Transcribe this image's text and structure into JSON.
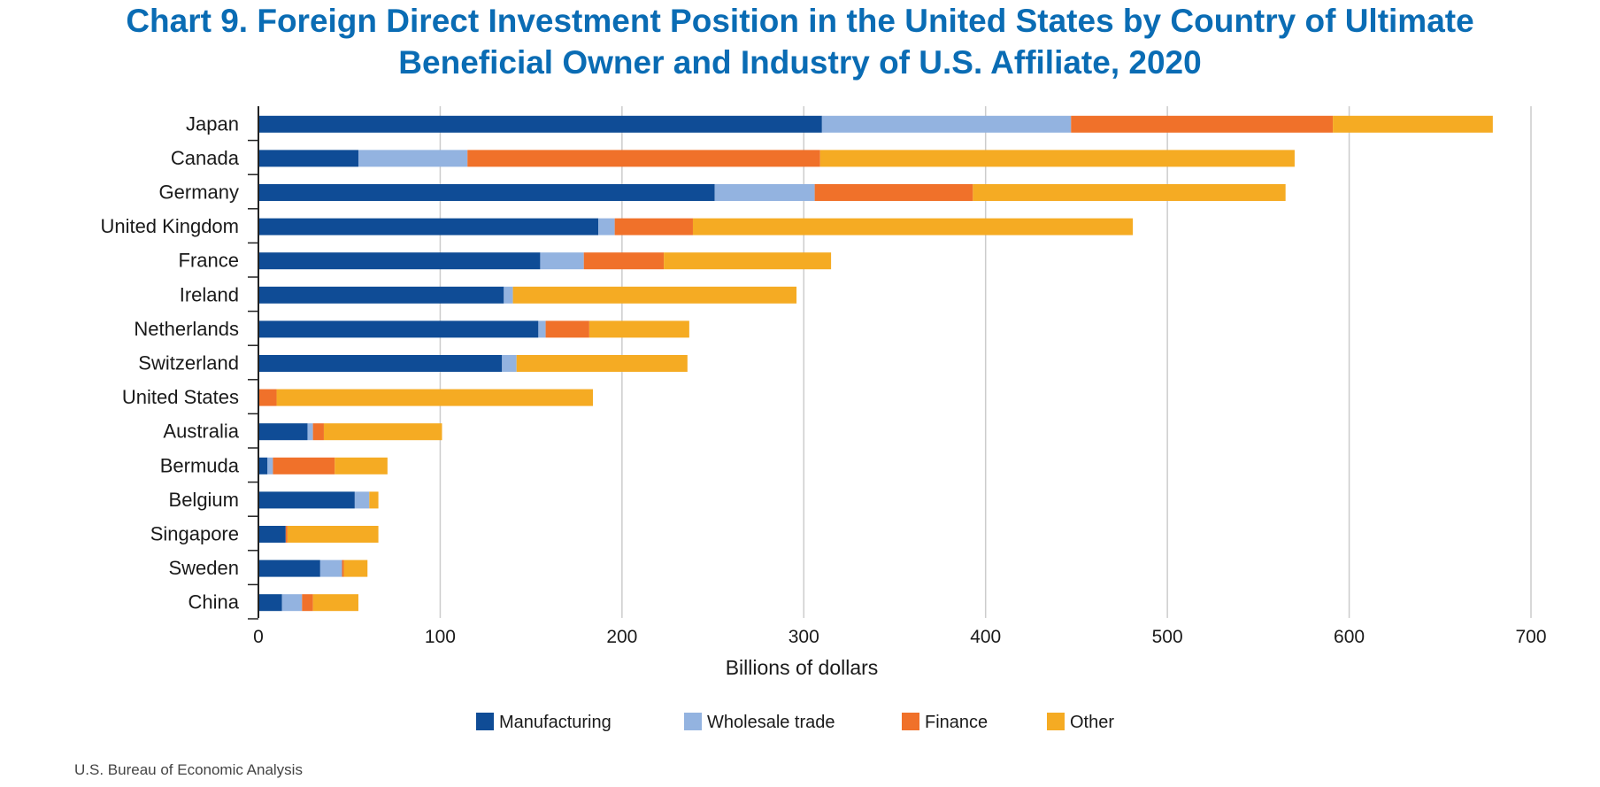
{
  "chart_data": {
    "type": "bar",
    "orientation": "horizontal",
    "stacked": true,
    "title_lines": [
      "Chart 9. Foreign Direct Investment Position in the United States by Country of Ultimate",
      "Beneficial Owner and Industry of U.S. Affiliate, 2020"
    ],
    "xlabel": "Billions of dollars",
    "ylabel": "",
    "xlim": [
      0,
      700
    ],
    "xticks": [
      0,
      100,
      200,
      300,
      400,
      500,
      600,
      700
    ],
    "grid": "vertical",
    "legend_position": "bottom",
    "categories": [
      "Japan",
      "Canada",
      "Germany",
      "United Kingdom",
      "France",
      "Ireland",
      "Netherlands",
      "Switzerland",
      "United States",
      "Australia",
      "Bermuda",
      "Belgium",
      "Singapore",
      "Sweden",
      "China"
    ],
    "series": [
      {
        "name": "Manufacturing",
        "color": "#0f4c96",
        "values": [
          310,
          55,
          251,
          187,
          155,
          135,
          154,
          134,
          0,
          27,
          5,
          53,
          15,
          34,
          13
        ]
      },
      {
        "name": "Wholesale trade",
        "color": "#93b3e0",
        "values": [
          137,
          60,
          55,
          9,
          24,
          5,
          4,
          8,
          0,
          3,
          3,
          8,
          0,
          12,
          11
        ]
      },
      {
        "name": "Finance",
        "color": "#f0712a",
        "values": [
          144,
          194,
          87,
          43,
          44,
          0,
          24,
          0,
          10,
          6,
          34,
          0,
          1,
          1,
          6
        ]
      },
      {
        "name": "Other",
        "color": "#f5ab23",
        "values": [
          88,
          261,
          172,
          242,
          92,
          156,
          55,
          94,
          174,
          65,
          29,
          5,
          50,
          13,
          25
        ]
      }
    ]
  },
  "source": "U.S. Bureau of Economic Analysis"
}
